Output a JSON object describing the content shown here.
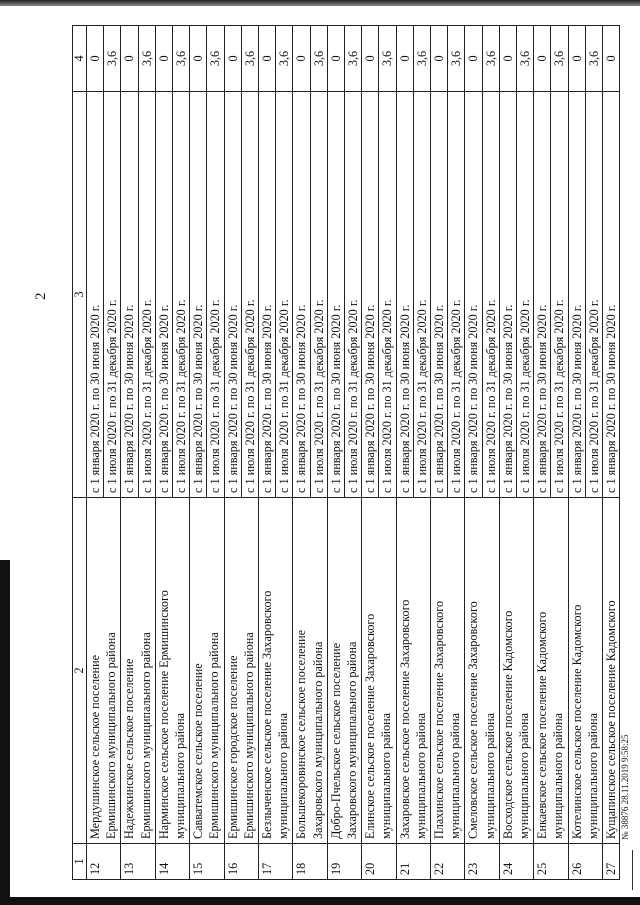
{
  "page_number": "2",
  "table": {
    "headers": [
      "1",
      "2",
      "3",
      "4"
    ],
    "rows": [
      {
        "num": "12",
        "name": [
          "Мердушинское сельское поселение",
          "Ермишинского муниципального района"
        ],
        "periods": [
          "с 1 января 2020 г. по 30 июня 2020 г.",
          "с 1 июля 2020 г. по 31 декабря 2020 г."
        ],
        "values": [
          "0",
          "3,6"
        ]
      },
      {
        "num": "13",
        "name": [
          "Надежкинское сельское поселение",
          "Ермишинского муниципального района"
        ],
        "periods": [
          "с 1 января 2020 г. по 30 июня 2020 г.",
          "с 1 июля 2020 г. по 31 декабря 2020 г."
        ],
        "values": [
          "0",
          "3,6"
        ]
      },
      {
        "num": "14",
        "name": [
          "Нарминское сельское поселение Ермишинского",
          "муниципального района"
        ],
        "periods": [
          "с 1 января 2020 г. по 30 июня 2020 г.",
          "с 1 июля 2020 г. по 31 декабря 2020 г."
        ],
        "values": [
          "0",
          "3,6"
        ]
      },
      {
        "num": "15",
        "name": [
          "Савватемское сельское поселение",
          "Ермишинского муниципального района"
        ],
        "periods": [
          "с 1 января 2020 г. по 30 июня 2020 г.",
          "с 1 июля 2020 г. по 31 декабря 2020 г."
        ],
        "values": [
          "0",
          "3,6"
        ]
      },
      {
        "num": "16",
        "name": [
          "Ермишинское городское поселение",
          "Ермишинского муниципального района"
        ],
        "periods": [
          "с 1 января 2020 г. по 30 июня 2020 г.",
          "с 1 июля 2020 г. по 31 декабря 2020 г."
        ],
        "values": [
          "0",
          "3,6"
        ]
      },
      {
        "num": "17",
        "name": [
          "Безлыченское сельское поселение Захаровского",
          "муниципального района"
        ],
        "periods": [
          "с 1 января 2020 г. по 30 июня 2020 г.",
          "с 1 июля 2020 г. по 31 декабря 2020 г."
        ],
        "values": [
          "0",
          "3,6"
        ]
      },
      {
        "num": "18",
        "name": [
          "Большекоровинское сельское поселение",
          "Захаровского муниципального района"
        ],
        "periods": [
          "с 1 января 2020 г. по 30 июня 2020 г.",
          "с 1 июля 2020 г. по 31 декабря 2020 г."
        ],
        "values": [
          "0",
          "3,6"
        ]
      },
      {
        "num": "19",
        "name": [
          "Добро-Пчельское сельское поселение",
          "Захаровского муниципального района"
        ],
        "periods": [
          "с 1 января 2020 г. по 30 июня 2020 г.",
          "с 1 июля 2020 г. по 31 декабря 2020 г."
        ],
        "values": [
          "0",
          "3,6"
        ]
      },
      {
        "num": "20",
        "name": [
          "Елинское сельское поселение Захаровского",
          "муниципального района"
        ],
        "periods": [
          "с 1 января 2020 г. по 30 июня 2020 г.",
          "с 1 июля 2020 г. по 31 декабря 2020 г."
        ],
        "values": [
          "0",
          "3,6"
        ]
      },
      {
        "num": "21",
        "name": [
          "Захаровское сельское поселение Захаровского",
          "муниципального района"
        ],
        "periods": [
          "с 1 января 2020 г. по 30 июня 2020 г.",
          "с 1 июля 2020 г. по 31 декабря 2020 г."
        ],
        "values": [
          "0",
          "3,6"
        ]
      },
      {
        "num": "22",
        "name": [
          "Плахинское сельское поселение Захаровского",
          "муниципального района"
        ],
        "periods": [
          "с 1 января 2020 г. по 30 июня 2020 г.",
          "с 1 июля 2020 г. по 31 декабря 2020 г."
        ],
        "values": [
          "0",
          "3,6"
        ]
      },
      {
        "num": "23",
        "name": [
          "Смеловское сельское поселение Захаровского",
          "муниципального района"
        ],
        "periods": [
          "с 1 января 2020 г. по 30 июня 2020 г.",
          "с 1 июля 2020 г. по 31 декабря 2020 г."
        ],
        "values": [
          "0",
          "3,6"
        ]
      },
      {
        "num": "24",
        "name": [
          "Восходское сельское поселение Кадомского",
          "муниципального района"
        ],
        "periods": [
          "с 1 января 2020 г. по 30 июня 2020 г.",
          "с 1 июля 2020 г. по 31 декабря 2020 г."
        ],
        "values": [
          "0",
          "3,6"
        ]
      },
      {
        "num": "25",
        "name": [
          "Енкаевское сельское поселение Кадомского",
          "муниципального района"
        ],
        "periods": [
          "с 1 января 2020 г. по 30 июня 2020 г.",
          "с 1 июля 2020 г. по 31 декабря 2020 г."
        ],
        "values": [
          "0",
          "3,6"
        ]
      },
      {
        "num": "26",
        "name": [
          "Котелинское сельское поселение Кадомского",
          "муниципального района"
        ],
        "periods": [
          "с 1 января 2020 г. по 30 июня 2020 г.",
          "с 1 июля 2020 г. по 31 декабря 2020 г."
        ],
        "values": [
          "0",
          "3,6"
        ]
      },
      {
        "num": "27",
        "name": [
          "Кущапинское сельское поселение Кадомского"
        ],
        "periods": [
          "с 1 января 2020 г. по 30 июня 2020 г."
        ],
        "values": [
          "0"
        ]
      }
    ]
  },
  "footer": {
    "registration": "№ 38876  28.11.2019 9:58:25"
  }
}
